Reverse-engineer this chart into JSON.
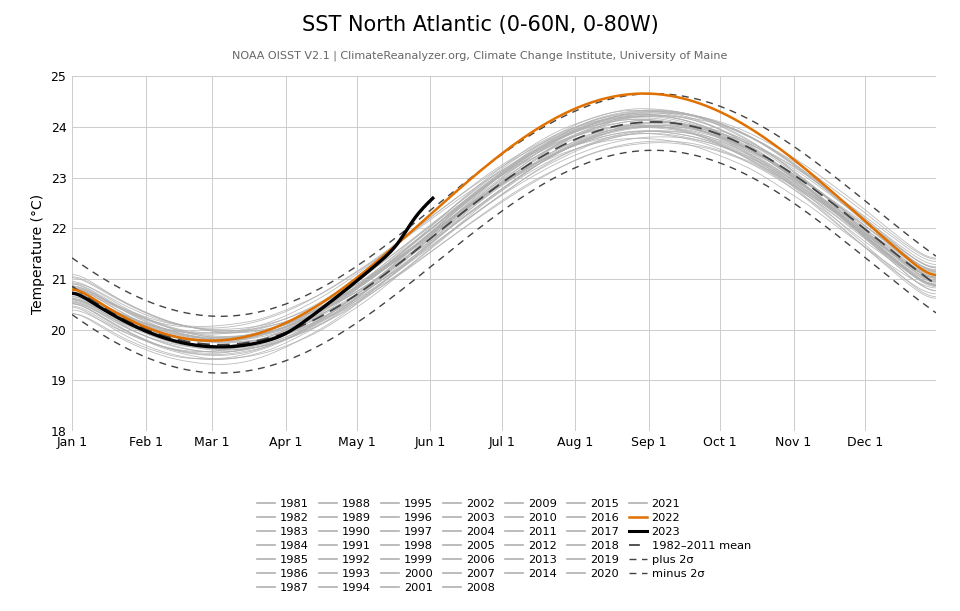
{
  "title": "SST North Atlantic (0-60N, 0-80W)",
  "subtitle": "NOAA OISST V2.1 | ClimateReanalyzer.org, Climate Change Institute, University of Maine",
  "ylabel": "Temperature (°C)",
  "ylim": [
    18,
    25
  ],
  "yticks": [
    18,
    19,
    20,
    21,
    22,
    23,
    24,
    25
  ],
  "months": [
    "Jan 1",
    "Feb 1",
    "Mar 1",
    "Apr 1",
    "May 1",
    "Jun 1",
    "Jul 1",
    "Aug 1",
    "Sep 1",
    "Oct 1",
    "Nov 1",
    "Dec 1"
  ],
  "background_color": "#ffffff",
  "grid_color": "#cccccc",
  "gray_color": "#b0b0b0",
  "year_color_2022": "#e07000",
  "year_color_2023": "#000000",
  "mean_color": "#444444",
  "sst_mean": 21.9,
  "sst_amplitude": 2.2,
  "sst_phase_peak_day": 245,
  "sigma": 0.28,
  "years_gray": [
    1981,
    1982,
    1983,
    1984,
    1985,
    1986,
    1987,
    1988,
    1989,
    1990,
    1991,
    1992,
    1993,
    1994,
    1995,
    1996,
    1997,
    1998,
    1999,
    2000,
    2001,
    2002,
    2003,
    2004,
    2005,
    2006,
    2007,
    2008,
    2009,
    2010,
    2011,
    2012,
    2013,
    2014,
    2015,
    2016,
    2017,
    2018,
    2019,
    2020,
    2021
  ]
}
